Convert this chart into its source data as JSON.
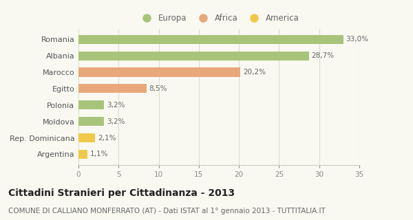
{
  "categories": [
    "Romania",
    "Albania",
    "Marocco",
    "Egitto",
    "Polonia",
    "Moldova",
    "Rep. Dominicana",
    "Argentina"
  ],
  "values": [
    33.0,
    28.7,
    20.2,
    8.5,
    3.2,
    3.2,
    2.1,
    1.1
  ],
  "labels": [
    "33,0%",
    "28,7%",
    "20,2%",
    "8,5%",
    "3,2%",
    "3,2%",
    "2,1%",
    "1,1%"
  ],
  "colors": [
    "#a8c47a",
    "#a8c47a",
    "#e8a87c",
    "#e8a87c",
    "#a8c47a",
    "#a8c47a",
    "#f0c84a",
    "#f0c84a"
  ],
  "legend": [
    {
      "label": "Europa",
      "color": "#a8c47a"
    },
    {
      "label": "Africa",
      "color": "#e8a87c"
    },
    {
      "label": "America",
      "color": "#f0c84a"
    }
  ],
  "xlim": [
    0,
    35
  ],
  "xticks": [
    0,
    5,
    10,
    15,
    20,
    25,
    30,
    35
  ],
  "title": "Cittadini Stranieri per Cittadinanza - 2013",
  "subtitle": "COMUNE DI CALLIANO MONFERRATO (AT) - Dati ISTAT al 1° gennaio 2013 - TUTTITALIA.IT",
  "background_color": "#f9f9f2",
  "grid_color": "#ddddcc",
  "bar_height": 0.55,
  "title_fontsize": 10,
  "subtitle_fontsize": 7.5,
  "label_fontsize": 7.5,
  "ytick_fontsize": 8,
  "xtick_fontsize": 7.5
}
